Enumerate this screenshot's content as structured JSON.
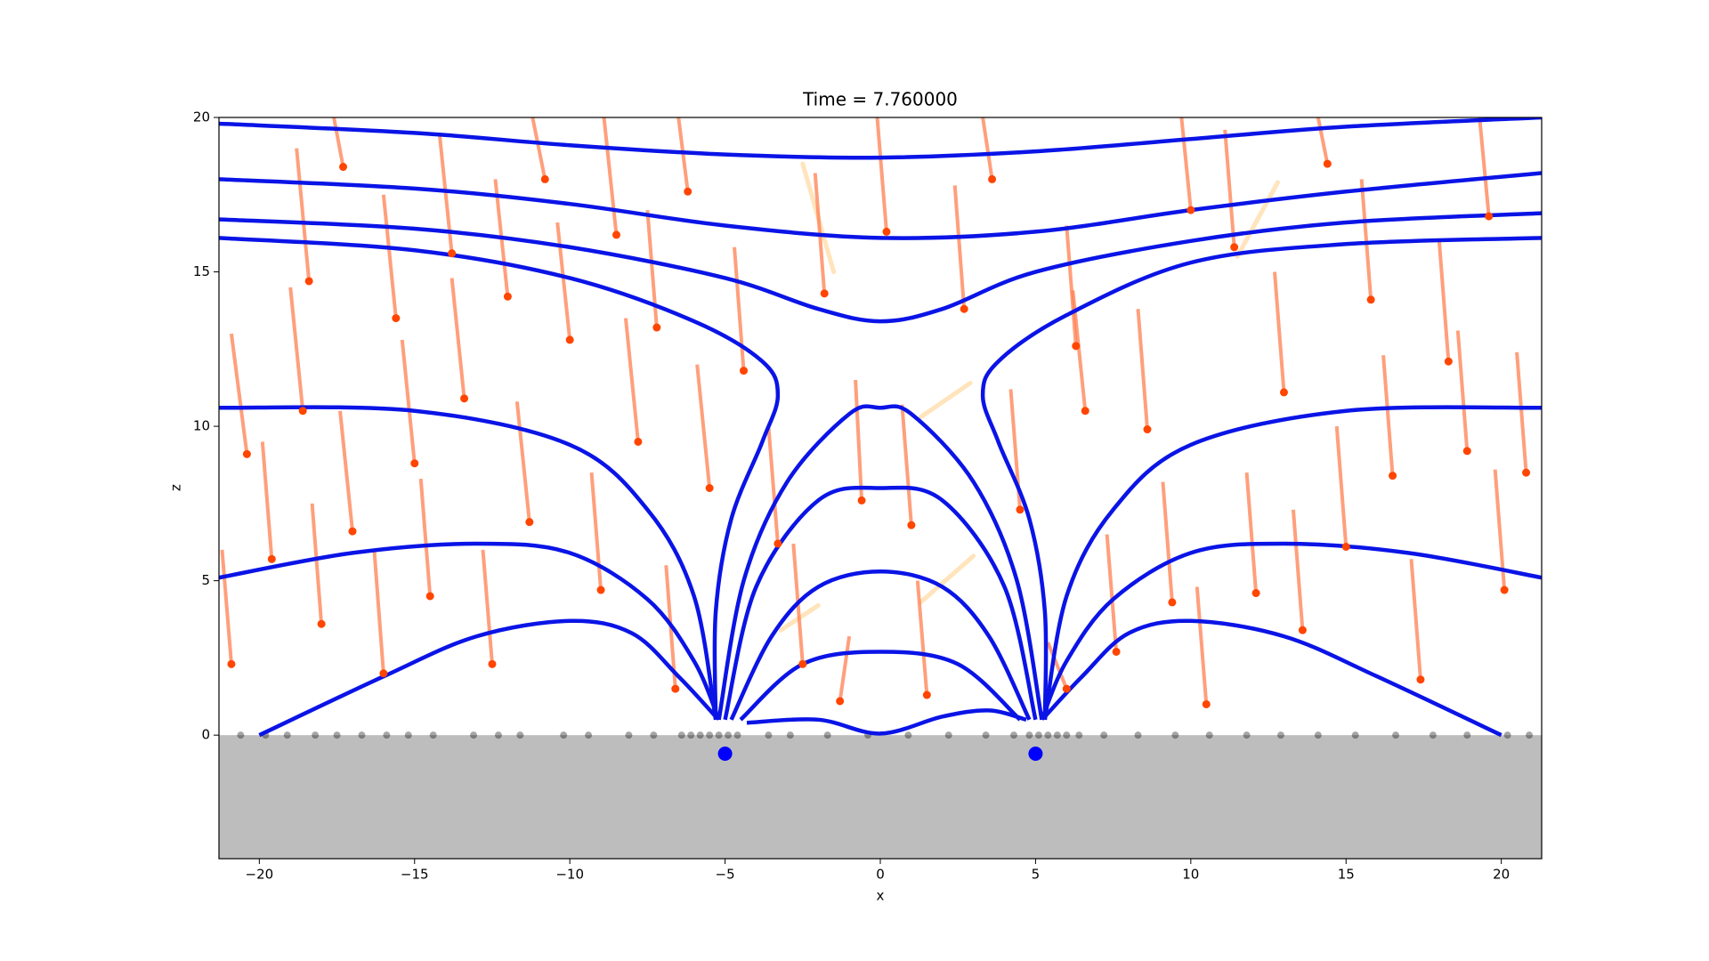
{
  "chart_data": {
    "type": "scatter",
    "title": "Time = 7.760000",
    "x_label": "x",
    "y_label": "z",
    "xlim": [
      -21.3,
      21.3
    ],
    "ylim": [
      -4,
      20
    ],
    "xticks": [
      {
        "value": -20,
        "label": "−20"
      },
      {
        "value": -15,
        "label": "−15"
      },
      {
        "value": -10,
        "label": "−10"
      },
      {
        "value": -5,
        "label": "−5"
      },
      0,
      5,
      10,
      15,
      20
    ],
    "yticks": [
      0,
      5,
      10,
      15,
      20
    ],
    "ground_color": "#bdbdbd",
    "field_lines": {
      "color": "#0a14e6",
      "lines": [
        {
          "x": [
            -21.3,
            -15,
            -10,
            -5,
            0,
            5,
            10,
            15,
            21.3
          ],
          "values": [
            19.8,
            19.5,
            19.1,
            18.8,
            18.7,
            18.9,
            19.3,
            19.7,
            20.0
          ]
        },
        {
          "x": [
            -21.3,
            -15,
            -10,
            -5,
            0,
            5,
            10,
            15,
            21.3
          ],
          "values": [
            18.0,
            17.7,
            17.2,
            16.5,
            16.1,
            16.3,
            17.0,
            17.6,
            18.2
          ]
        },
        {
          "x": [
            -21.3,
            -15,
            -10,
            -5,
            -2,
            0,
            2,
            5,
            10,
            15,
            21.3
          ],
          "values": [
            16.7,
            16.4,
            15.8,
            14.8,
            13.8,
            13.4,
            13.8,
            15.0,
            16.0,
            16.6,
            16.9
          ]
        },
        {
          "x": [
            -21.3,
            -15,
            -10,
            -6,
            -3.8,
            -3.3,
            -3.8,
            -4.8,
            -5.3,
            -5.3
          ],
          "values": [
            16.1,
            15.7,
            14.8,
            13.4,
            12.1,
            11.0,
            9.5,
            7.0,
            4.0,
            0.5
          ]
        },
        {
          "x": [
            5.3,
            5.3,
            4.8,
            3.8,
            3.3,
            3.8,
            6,
            10,
            15,
            21.3
          ],
          "values": [
            0.5,
            4.0,
            7.0,
            9.5,
            11.0,
            12.1,
            13.6,
            15.3,
            15.9,
            16.1
          ]
        },
        {
          "x": [
            -21.3,
            -15,
            -10,
            -7.5,
            -6,
            -5.3
          ],
          "values": [
            10.6,
            10.5,
            9.4,
            7.3,
            4.5,
            0.5
          ]
        },
        {
          "x": [
            5.3,
            6,
            7.5,
            10,
            15,
            21.3
          ],
          "values": [
            0.5,
            4.5,
            7.3,
            9.4,
            10.5,
            10.6
          ]
        },
        {
          "x": [
            -21.3,
            -17,
            -13,
            -10,
            -7.5,
            -6,
            -5.2
          ],
          "values": [
            5.1,
            5.9,
            6.2,
            5.9,
            4.4,
            2.4,
            0.5
          ]
        },
        {
          "x": [
            5.2,
            6,
            7.5,
            10,
            13,
            17,
            21.3
          ],
          "values": [
            0.5,
            2.4,
            4.4,
            5.9,
            6.2,
            5.9,
            5.1
          ]
        },
        {
          "x": [
            -20,
            -16,
            -13,
            -10,
            -8,
            -6.5,
            -5.3
          ],
          "values": [
            0.0,
            1.9,
            3.2,
            3.7,
            3.3,
            1.9,
            0.6
          ]
        },
        {
          "x": [
            5.3,
            6.5,
            8,
            10,
            13,
            16,
            20
          ],
          "values": [
            0.6,
            1.9,
            3.3,
            3.7,
            3.2,
            1.9,
            0.0
          ]
        },
        {
          "x": [
            -5.2,
            -4.4,
            -3,
            -1,
            0,
            1,
            3,
            4.4,
            5.2
          ],
          "values": [
            0.5,
            5.0,
            8.2,
            10.4,
            10.6,
            10.4,
            8.2,
            5.0,
            0.5
          ]
        },
        {
          "x": [
            -5,
            -4,
            -2,
            0,
            2,
            4,
            5
          ],
          "values": [
            0.5,
            4.8,
            7.6,
            8.0,
            7.6,
            4.8,
            0.5
          ]
        },
        {
          "x": [
            -4.8,
            -3.5,
            -2,
            0,
            2,
            3.5,
            4.8
          ],
          "values": [
            0.5,
            3.2,
            4.8,
            5.3,
            4.8,
            3.2,
            0.5
          ]
        },
        {
          "x": [
            -4.5,
            -2.5,
            0,
            2.5,
            4.5
          ],
          "values": [
            0.5,
            2.3,
            2.7,
            2.3,
            0.5
          ]
        },
        {
          "x": [
            -4.3,
            -2,
            0,
            2,
            3.5,
            4.7
          ],
          "values": [
            0.4,
            0.5,
            0.05,
            0.6,
            0.8,
            0.5
          ]
        }
      ]
    },
    "particles": {
      "color": "#ff4500",
      "trail_color": "#ff7f50",
      "x": [
        -20.9,
        -20.4,
        -19.6,
        -18.6,
        -18.4,
        -18.0,
        -17.3,
        -17.0,
        -16.0,
        -15.6,
        -15.0,
        -14.5,
        -13.8,
        -13.4,
        -12.5,
        -12.0,
        -11.3,
        -10.8,
        -10.0,
        -9.0,
        -8.5,
        -7.8,
        -7.2,
        -6.6,
        -6.2,
        -5.5,
        -4.4,
        -3.3,
        -2.5,
        -1.8,
        -0.6,
        0.2,
        1.0,
        1.5,
        2.7,
        3.6,
        4.5,
        6.3,
        6.6,
        7.6,
        8.6,
        9.4,
        10.0,
        10.5,
        11.4,
        12.1,
        13.0,
        13.6,
        14.4,
        15.0,
        15.8,
        16.5,
        17.4,
        18.3,
        18.9,
        19.6,
        20.1,
        20.8,
        -1.3,
        6.0
      ],
      "values": [
        2.3,
        9.1,
        5.7,
        10.5,
        14.7,
        3.6,
        18.4,
        6.6,
        2.0,
        13.5,
        8.8,
        4.5,
        15.6,
        10.9,
        2.3,
        14.2,
        6.9,
        18.0,
        12.8,
        4.7,
        16.2,
        9.5,
        13.2,
        1.5,
        17.6,
        8.0,
        11.8,
        6.2,
        2.3,
        14.3,
        7.6,
        16.3,
        6.8,
        1.3,
        13.8,
        18.0,
        7.3,
        12.6,
        10.5,
        2.7,
        9.9,
        4.3,
        17.0,
        1.0,
        15.8,
        4.6,
        11.1,
        3.4,
        18.5,
        6.1,
        14.1,
        8.4,
        1.8,
        12.1,
        9.2,
        16.8,
        4.7,
        8.5,
        1.1,
        1.5
      ],
      "tail_x": [
        -21.2,
        -20.9,
        -19.9,
        -19.0,
        -18.8,
        -18.3,
        -17.6,
        -17.4,
        -16.3,
        -16.0,
        -15.4,
        -14.8,
        -14.2,
        -13.8,
        -12.8,
        -12.4,
        -11.7,
        -11.2,
        -10.4,
        -9.3,
        -8.9,
        -8.2,
        -7.5,
        -6.9,
        -6.5,
        -5.9,
        -4.7,
        -3.6,
        -2.8,
        -2.1,
        -0.8,
        -0.1,
        0.7,
        1.2,
        2.4,
        3.3,
        4.2,
        6.0,
        6.2,
        7.3,
        8.3,
        9.1,
        9.7,
        10.2,
        11.1,
        11.8,
        12.7,
        13.3,
        14.1,
        14.7,
        15.5,
        16.2,
        17.1,
        18.0,
        18.6,
        19.3,
        19.8,
        20.5,
        -1.0,
        5.4
      ],
      "tail_values": [
        6.0,
        13.0,
        9.5,
        14.5,
        19.0,
        7.5,
        20.0,
        10.5,
        6.0,
        17.5,
        12.8,
        8.3,
        19.5,
        14.8,
        6.0,
        18.0,
        10.8,
        20.0,
        16.6,
        8.5,
        20.0,
        13.5,
        17.0,
        5.5,
        20.0,
        12.0,
        15.8,
        10.0,
        6.2,
        18.2,
        11.5,
        20.0,
        10.7,
        5.0,
        17.8,
        20.0,
        11.2,
        16.5,
        14.4,
        6.5,
        13.8,
        8.2,
        20.0,
        4.8,
        19.6,
        8.5,
        15.0,
        7.3,
        20.0,
        10.0,
        18.0,
        12.3,
        5.7,
        16.0,
        13.1,
        20.0,
        8.6,
        12.4,
        3.2,
        3.0
      ]
    },
    "neutral_trails": {
      "color": "#ffd9a0",
      "x": [
        -2.5,
        2.9,
        3.0,
        12.8,
        -2.0
      ],
      "values": [
        18.5,
        11.4,
        5.8,
        17.9,
        4.2
      ],
      "tail_x": [
        -1.5,
        1.3,
        1.3,
        11.5,
        -3.2
      ],
      "tail_values": [
        15.0,
        10.3,
        4.3,
        15.5,
        3.4
      ]
    },
    "deposited": {
      "color": "#000000",
      "x": [
        -20.6,
        -19.8,
        -19.1,
        -18.2,
        -17.5,
        -16.7,
        -15.9,
        -15.2,
        -14.4,
        -13.1,
        -12.3,
        -11.6,
        -10.2,
        -9.4,
        -8.1,
        -7.3,
        -6.4,
        -6.1,
        -5.8,
        -5.5,
        -5.2,
        -4.9,
        -4.6,
        -3.6,
        -2.9,
        -1.7,
        -0.4,
        0.9,
        2.2,
        3.4,
        4.3,
        4.8,
        5.1,
        5.4,
        5.7,
        6.0,
        6.4,
        7.2,
        8.3,
        9.5,
        10.6,
        11.8,
        12.9,
        14.1,
        15.3,
        16.6,
        17.8,
        18.9,
        20.2,
        20.9
      ]
    },
    "poles": {
      "color": "#0000ff",
      "x": [
        -5,
        5
      ],
      "values": [
        -0.6,
        -0.6
      ]
    }
  }
}
